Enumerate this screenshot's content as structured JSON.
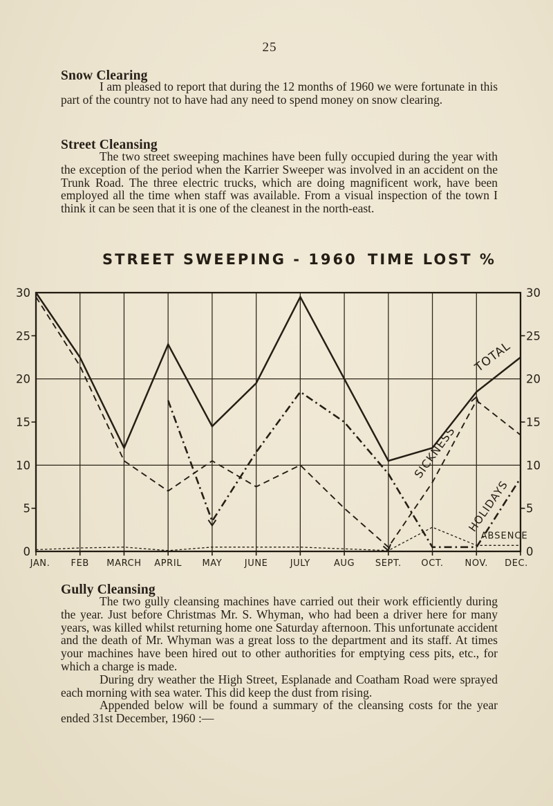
{
  "page": {
    "number": "25"
  },
  "sections": {
    "snow": {
      "heading": "Snow Clearing",
      "body": "I am pleased to report that during the 12 months of 1960 we were fortunate in this part of the country not to have had any need to spend money on snow clearing."
    },
    "street": {
      "heading": "Street Cleansing",
      "body": "The two street sweeping machines have been fully occupied during the year with the exception of the period when the Karrier Sweeper was involved in an accident on the Trunk Road. The three electric trucks, which are doing magnificent work, have been employed all the time when staff was available. From a visual inspection of the town I think it can be seen that it is one of the cleanest in the north-east."
    },
    "gully": {
      "heading": "Gully Cleansing",
      "paragraphs": [
        "The two gully cleansing machines have carried out their work efficiently during the year. Just before Christmas Mr. S. Whyman, who had been a driver here for many years, was killed whilst returning home one Saturday afternoon. This unfortunate accident and the death of Mr. Whyman was a great loss to the department and its staff. At times your machines have been hired out to other authorities for emptying cess pits, etc., for which a charge is made.",
        "During dry weather the High Street, Esplanade and Coatham Road were sprayed each morning with sea water. This did keep the dust from rising.",
        "Appended below will be found a summary of the cleansing costs for the year ended 31st December, 1960 :—"
      ]
    }
  },
  "chart_data": {
    "type": "line",
    "title_left": "STREET SWEEPING - 1960",
    "title_right": "TIME LOST %",
    "categories": [
      "JAN.",
      "FEB",
      "MARCH",
      "APRIL",
      "MAY",
      "JUNE",
      "JULY",
      "AUG",
      "SEPT.",
      "OCT.",
      "NOV.",
      "DEC."
    ],
    "ylim": [
      0,
      30
    ],
    "yticks": [
      0,
      5,
      10,
      15,
      20,
      25,
      30
    ],
    "gridlines_y": [
      10,
      20
    ],
    "legend_position": "labels-on-lines",
    "series": [
      {
        "name": "TOTAL",
        "style": "solid",
        "values": [
          30,
          22.5,
          12,
          24,
          14.5,
          19.5,
          29.5,
          20,
          10.5,
          12,
          18.5,
          22.5
        ]
      },
      {
        "name": "SICKNESS",
        "style": "dashed",
        "values": [
          29.5,
          21.5,
          10.5,
          7,
          10.5,
          7.5,
          10,
          5,
          0.5,
          8,
          17.5,
          13.5
        ]
      },
      {
        "name": "HOLIDAYS",
        "style": "dashdot",
        "values": [
          null,
          null,
          null,
          17.5,
          3.5,
          11.5,
          18.5,
          15,
          9,
          0.5,
          0.5,
          8.5
        ]
      },
      {
        "name": "ABSENCE",
        "style": "fine-dashed",
        "values": [
          0.2,
          0.4,
          0.5,
          0.1,
          0.5,
          0.5,
          0.5,
          0.3,
          0.1,
          2.8,
          0.7,
          0.7
        ]
      }
    ],
    "series_labels": [
      {
        "text": "TOTAL",
        "month": 10.05,
        "value": 20.8,
        "rotate": -37,
        "size": 17
      },
      {
        "text": "SICKNESS",
        "month": 8.72,
        "value": 8.4,
        "rotate": -54,
        "size": 16
      },
      {
        "text": "HOLIDAYS",
        "month": 9.95,
        "value": 2.2,
        "rotate": -55,
        "size": 15.5
      },
      {
        "text": "ABSENCE",
        "month": 10.1,
        "value": 1.5,
        "rotate": 0,
        "size": 13
      }
    ],
    "arrows": [
      {
        "month": 4,
        "value": 3.0,
        "angle": 180
      },
      {
        "month": 8,
        "value": 0.1,
        "angle": 165
      },
      {
        "month": 10,
        "value": 17.9,
        "angle": 15
      }
    ]
  }
}
